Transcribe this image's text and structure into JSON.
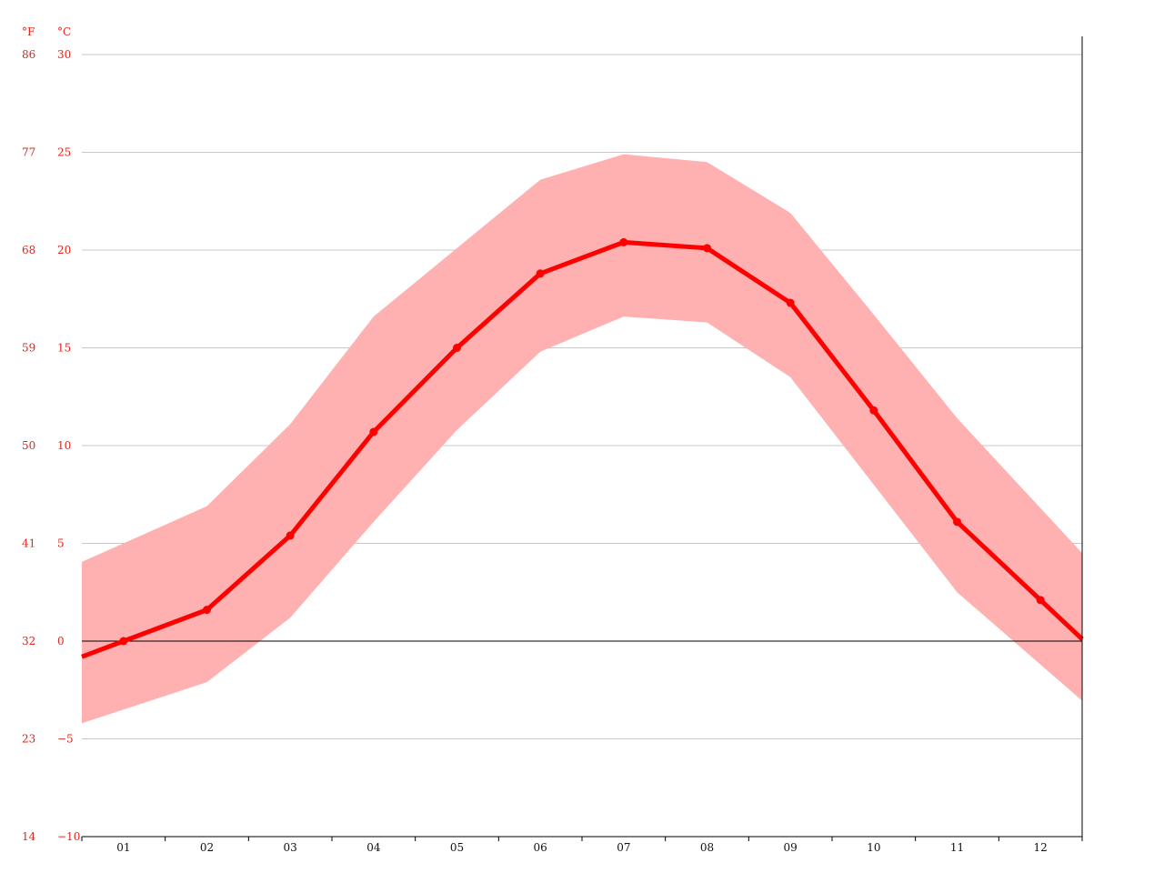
{
  "chart_data": {
    "type": "line",
    "units": {
      "fahrenheit": "°F",
      "celsius": "°C"
    },
    "y_ticks_celsius": [
      "30",
      "25",
      "20",
      "15",
      "10",
      "5",
      "0",
      "−5",
      "−10"
    ],
    "y_ticks_fahrenheit": [
      "86",
      "77",
      "68",
      "59",
      "50",
      "41",
      "32",
      "23",
      "14"
    ],
    "ylim": [
      -10,
      30
    ],
    "categories": [
      "01",
      "02",
      "03",
      "04",
      "05",
      "06",
      "07",
      "08",
      "09",
      "10",
      "11",
      "12"
    ],
    "series": [
      {
        "values": [
          0.0,
          1.6,
          5.4,
          10.7,
          15.0,
          18.8,
          20.4,
          20.1,
          17.3,
          11.8,
          6.1,
          2.1
        ]
      }
    ],
    "band": {
      "max": [
        5.0,
        6.9,
        11.1,
        16.6,
        20.1,
        23.6,
        24.9,
        24.5,
        21.9,
        16.7,
        11.4,
        6.8
      ],
      "min": [
        -3.5,
        -2.1,
        1.2,
        6.1,
        10.8,
        14.8,
        16.6,
        16.3,
        13.5,
        8.0,
        2.5,
        -1.2
      ]
    },
    "line_color": "#ff0000",
    "band_color": "#ffb0b0",
    "grid": true
  }
}
